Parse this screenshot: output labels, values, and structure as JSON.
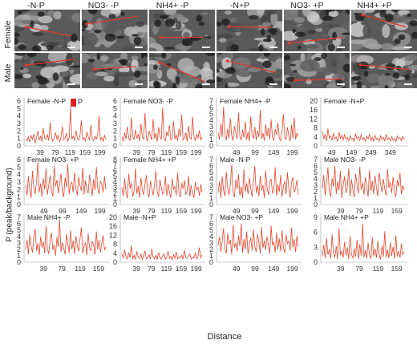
{
  "column_headers": [
    "-N-P",
    "NO3- -P",
    "NH4+ -P",
    "-N+P",
    "NO3- +P",
    "NH4+ +P"
  ],
  "row_labels": [
    "Female",
    "Male"
  ],
  "y_axis_label": "P (peak/background)",
  "x_axis_label": "Distance",
  "legend_label": "P",
  "colors": {
    "line": "#e8452c",
    "legend": "#e02020",
    "sem_dark": "#2a2a2a",
    "sem_light": "#b8b8b8",
    "trace": "#e23a2a"
  },
  "chart_data": [
    {
      "type": "line",
      "title": "Female -N-P",
      "ylim": [
        0,
        6
      ],
      "yticks": [
        0,
        1,
        2,
        3,
        4,
        5,
        6
      ],
      "xticks": [
        39,
        79,
        119,
        159,
        199
      ],
      "xlim": [
        0,
        215
      ],
      "series": [
        {
          "values": [
            1.0,
            0.7,
            1.2,
            0.5,
            1.4,
            0.9,
            1.6,
            0.4,
            1.1,
            2.0,
            0.8,
            1.3,
            0.6,
            2.4,
            1.0,
            0.9,
            1.5,
            0.7,
            3.1,
            1.2,
            0.6,
            1.0,
            1.8,
            0.9,
            1.4,
            0.5,
            1.2,
            2.6,
            0.8,
            1.0,
            1.7,
            0.6,
            1.1,
            5.2,
            0.9,
            1.3,
            0.7,
            2.1,
            1.0,
            0.8,
            1.4,
            3.4,
            0.9,
            1.1,
            0.6,
            1.9,
            1.2,
            0.8,
            2.8,
            1.0,
            0.7,
            1.3,
            0.9,
            1.5,
            4.0,
            0.8,
            1.1,
            0.6,
            1.4,
            0.9
          ]
        }
      ]
    },
    {
      "type": "line",
      "title": "Female NO3- -P",
      "ylim": [
        0,
        6
      ],
      "yticks": [
        0,
        1,
        2,
        3,
        4,
        5,
        6
      ],
      "xticks": [
        39,
        79,
        119,
        159,
        199
      ],
      "xlim": [
        0,
        215
      ],
      "series": [
        {
          "values": [
            1.2,
            0.6,
            1.8,
            0.9,
            2.6,
            1.1,
            0.7,
            3.8,
            1.3,
            0.8,
            2.2,
            1.0,
            1.6,
            0.6,
            3.0,
            1.2,
            0.9,
            4.4,
            1.1,
            0.7,
            2.0,
            1.4,
            0.8,
            3.6,
            1.0,
            1.7,
            0.6,
            2.5,
            1.2,
            0.9,
            5.1,
            1.0,
            0.7,
            1.9,
            1.3,
            2.8,
            0.8,
            1.1,
            3.3,
            0.9,
            1.5,
            0.7,
            2.3,
            1.2,
            4.2,
            0.8,
            1.0,
            1.8,
            0.6,
            2.7,
            1.1,
            0.9,
            3.9,
            1.3,
            0.7,
            1.6,
            1.0,
            2.1,
            0.8,
            1.2
          ]
        }
      ]
    },
    {
      "type": "line",
      "title": "Female NH4+ -P",
      "ylim": [
        0,
        7
      ],
      "yticks": [
        0,
        1,
        2,
        3,
        4,
        5,
        6,
        7
      ],
      "xticks": [
        49,
        99,
        149,
        199
      ],
      "xlim": [
        0,
        215
      ],
      "series": [
        {
          "values": [
            2.1,
            1.0,
            3.5,
            1.4,
            6.1,
            1.8,
            0.9,
            2.7,
            1.2,
            4.3,
            1.6,
            0.8,
            3.1,
            2.0,
            1.1,
            5.2,
            1.5,
            0.9,
            2.5,
            1.3,
            3.8,
            1.0,
            2.2,
            0.7,
            4.6,
            1.6,
            1.2,
            3.0,
            0.9,
            2.4,
            1.4,
            5.6,
            1.1,
            2.0,
            0.8,
            3.4,
            1.5,
            2.8,
            1.0,
            4.1,
            1.3,
            0.9,
            2.6,
            1.8,
            3.6,
            1.2,
            0.8,
            2.3,
            5.0,
            1.4,
            1.0,
            2.9,
            1.6,
            0.7,
            3.3,
            1.2,
            4.4,
            1.0,
            2.0,
            1.5
          ]
        }
      ]
    },
    {
      "type": "line",
      "title": "Female -N+P",
      "ylim": [
        0,
        20
      ],
      "yticks": [
        0,
        4,
        8,
        12,
        16,
        20
      ],
      "xticks": [
        49,
        149,
        249,
        349
      ],
      "xlim": [
        0,
        420
      ],
      "series": [
        {
          "values": [
            6.5,
            3.0,
            5.2,
            2.2,
            7.8,
            3.6,
            4.4,
            2.5,
            5.8,
            3.1,
            4.0,
            2.0,
            6.2,
            3.4,
            4.8,
            2.6,
            5.0,
            3.0,
            3.8,
            2.3,
            4.6,
            2.9,
            3.5,
            2.1,
            5.4,
            3.2,
            4.1,
            2.4,
            4.9,
            2.8,
            3.6,
            2.0,
            4.3,
            3.1,
            5.1,
            2.5,
            3.9,
            2.2,
            4.7,
            3.0,
            3.4,
            2.1,
            4.5,
            2.7,
            3.8,
            2.3,
            5.0,
            2.9,
            3.6,
            2.2,
            4.2,
            2.6,
            3.3,
            2.0,
            4.4,
            3.2,
            3.7,
            2.4,
            4.1,
            2.8
          ]
        }
      ]
    },
    {
      "type": "line",
      "title": "Female NO3- +P",
      "ylim": [
        0,
        6
      ],
      "yticks": [
        0,
        1,
        2,
        3,
        4,
        5,
        6
      ],
      "xticks": [
        49,
        99,
        149,
        199
      ],
      "xlim": [
        0,
        215
      ],
      "series": [
        {
          "values": [
            2.5,
            1.2,
            3.8,
            1.9,
            0.9,
            4.5,
            2.2,
            1.4,
            3.1,
            5.6,
            1.6,
            2.8,
            1.0,
            3.5,
            2.0,
            4.8,
            1.3,
            2.6,
            3.9,
            1.8,
            1.1,
            5.2,
            2.4,
            3.3,
            1.5,
            2.9,
            4.1,
            1.7,
            1.0,
            3.6,
            2.3,
            5.4,
            1.4,
            2.7,
            3.0,
            1.6,
            4.3,
            2.1,
            1.2,
            3.7,
            2.5,
            1.8,
            4.9,
            1.3,
            3.2,
            2.0,
            1.5,
            4.0,
            2.6,
            1.1,
            3.4,
            1.9,
            5.0,
            2.2,
            1.4,
            3.1,
            2.7,
            1.6,
            3.8,
            2.0
          ]
        }
      ]
    },
    {
      "type": "line",
      "title": "Female NH4+ +P",
      "ylim": [
        0,
        8
      ],
      "yticks": [
        0,
        1,
        2,
        3,
        4,
        5,
        6,
        7,
        8
      ],
      "xticks": [
        39,
        79,
        119,
        159,
        199
      ],
      "xlim": [
        0,
        215
      ],
      "series": [
        {
          "values": [
            3.0,
            1.5,
            4.6,
            2.2,
            1.1,
            5.5,
            2.8,
            3.9,
            1.4,
            2.4,
            6.4,
            1.9,
            3.3,
            1.2,
            4.8,
            2.6,
            1.7,
            3.6,
            5.2,
            2.0,
            1.3,
            4.2,
            2.9,
            1.6,
            3.5,
            6.0,
            2.3,
            1.4,
            4.4,
            3.0,
            1.8,
            2.5,
            5.0,
            1.5,
            3.7,
            2.2,
            1.2,
            4.6,
            2.7,
            3.2,
            1.6,
            5.6,
            2.1,
            1.3,
            3.8,
            2.8,
            4.3,
            1.7,
            2.4,
            5.1,
            1.4,
            3.4,
            2.0,
            1.2,
            4.0,
            2.6,
            3.1,
            1.5,
            3.6,
            2.2
          ]
        }
      ]
    },
    {
      "type": "line",
      "title": "Male -N-P",
      "ylim": [
        0,
        7
      ],
      "yticks": [
        0,
        1,
        2,
        3,
        4,
        5,
        6,
        7
      ],
      "xticks": [
        49,
        99,
        149,
        199
      ],
      "xlim": [
        0,
        215
      ],
      "series": [
        {
          "values": [
            1.8,
            3.6,
            1.0,
            4.4,
            2.2,
            1.3,
            5.1,
            2.6,
            1.5,
            3.2,
            6.2,
            1.9,
            1.1,
            3.9,
            2.4,
            4.7,
            1.4,
            2.8,
            1.0,
            5.5,
            2.0,
            3.3,
            1.6,
            4.2,
            2.5,
            1.2,
            3.7,
            6.0,
            1.8,
            2.9,
            1.3,
            4.5,
            2.2,
            3.0,
            1.0,
            5.3,
            2.7,
            1.5,
            3.5,
            4.0,
            1.7,
            2.3,
            5.8,
            1.4,
            3.1,
            2.0,
            4.6,
            1.2,
            2.8,
            3.6,
            1.6,
            5.0,
            2.4,
            1.1,
            3.4,
            4.3,
            1.9,
            2.6,
            3.8,
            1.5
          ]
        }
      ]
    },
    {
      "type": "line",
      "title": "Male NO3- -P",
      "ylim": [
        0,
        7
      ],
      "yticks": [
        0,
        1,
        2,
        3,
        4,
        5,
        6,
        7
      ],
      "xticks": [
        39,
        79,
        119,
        159
      ],
      "xlim": [
        0,
        175
      ],
      "series": [
        {
          "values": [
            2.5,
            4.6,
            1.4,
            3.3,
            5.8,
            2.0,
            1.2,
            4.1,
            2.8,
            6.0,
            1.6,
            3.6,
            2.2,
            5.2,
            1.0,
            3.0,
            4.4,
            1.8,
            2.6,
            5.6,
            1.3,
            3.9,
            2.4,
            1.1,
            4.8,
            3.1,
            1.7,
            5.9,
            2.3,
            3.4,
            1.5,
            4.2,
            2.9,
            1.2,
            5.4,
            2.1,
            3.7,
            1.6,
            4.5,
            2.7,
            1.3,
            5.0,
            3.2,
            1.9,
            4.0,
            2.4,
            1.4,
            5.5,
            2.6,
            3.5,
            1.8,
            4.3,
            2.1,
            1.2,
            3.8,
            2.8,
            4.9,
            1.6,
            3.0,
            2.2
          ]
        }
      ]
    },
    {
      "type": "line",
      "title": "Male NH4+ -P",
      "ylim": [
        0,
        7
      ],
      "yticks": [
        0,
        1,
        2,
        3,
        4,
        5,
        6,
        7
      ],
      "xticks": [
        39,
        79,
        119,
        159
      ],
      "xlim": [
        0,
        175
      ],
      "series": [
        {
          "values": [
            2.0,
            3.5,
            1.2,
            4.3,
            2.6,
            1.5,
            3.8,
            5.2,
            1.8,
            2.9,
            1.1,
            4.0,
            2.3,
            3.2,
            1.4,
            5.6,
            2.1,
            1.3,
            3.6,
            4.6,
            1.9,
            2.7,
            1.0,
            3.9,
            2.4,
            6.6,
            1.6,
            3.1,
            2.2,
            1.2,
            4.4,
            2.8,
            1.5,
            5.0,
            2.0,
            3.4,
            1.3,
            4.1,
            2.5,
            1.7,
            3.7,
            5.4,
            1.4,
            2.6,
            3.0,
            1.1,
            4.5,
            2.2,
            1.8,
            3.3,
            2.7,
            1.2,
            4.8,
            2.0,
            3.5,
            1.5,
            2.9,
            4.2,
            1.9,
            2.4
          ]
        }
      ]
    },
    {
      "type": "line",
      "title": "Male -N+P",
      "ylim": [
        0,
        20
      ],
      "yticks": [
        0,
        4,
        8,
        12,
        16,
        20
      ],
      "xticks": [
        39,
        79,
        119,
        159,
        199
      ],
      "xlim": [
        0,
        215
      ],
      "series": [
        {
          "values": [
            3.5,
            1.8,
            5.6,
            2.4,
            1.4,
            4.2,
            2.0,
            7.4,
            1.6,
            3.0,
            1.3,
            4.8,
            2.2,
            1.7,
            3.6,
            1.2,
            2.8,
            5.2,
            1.5,
            2.1,
            3.4,
            1.4,
            6.0,
            2.3,
            1.6,
            3.1,
            1.2,
            4.4,
            2.0,
            1.5,
            2.7,
            3.8,
            1.3,
            2.2,
            5.0,
            1.7,
            2.6,
            1.2,
            3.3,
            1.8,
            4.6,
            1.4,
            2.4,
            1.9,
            3.0,
            1.3,
            5.4,
            2.1,
            1.6,
            2.9,
            3.6,
            1.4,
            2.2,
            1.8,
            4.2,
            1.5,
            2.6,
            6.5,
            2.0,
            3.2
          ]
        }
      ]
    },
    {
      "type": "line",
      "title": "Male NO3- +P",
      "ylim": [
        0,
        7
      ],
      "yticks": [
        0,
        1,
        2,
        3,
        4,
        5,
        6,
        7
      ],
      "xticks": [
        49,
        99,
        149,
        199
      ],
      "xlim": [
        0,
        215
      ],
      "series": [
        {
          "values": [
            2.6,
            4.0,
            1.6,
            3.3,
            5.3,
            2.1,
            1.4,
            4.5,
            2.8,
            3.5,
            1.2,
            5.8,
            2.3,
            3.0,
            1.7,
            4.2,
            2.5,
            6.0,
            1.5,
            3.6,
            2.0,
            4.8,
            1.3,
            2.9,
            3.8,
            1.8,
            5.1,
            2.4,
            1.6,
            4.4,
            3.1,
            1.4,
            5.5,
            2.2,
            3.4,
            1.9,
            4.0,
            2.7,
            1.3,
            5.7,
            2.6,
            3.2,
            1.5,
            4.6,
            2.0,
            3.7,
            1.7,
            5.0,
            2.4,
            1.4,
            4.3,
            2.9,
            3.3,
            1.8,
            5.4,
            2.3,
            3.6,
            1.6,
            4.1,
            2.5
          ]
        }
      ]
    },
    {
      "type": "line",
      "title": "Male NH4+ +P",
      "ylim": [
        0,
        9
      ],
      "yticks": [
        0,
        3,
        6,
        9
      ],
      "xticks": [
        39,
        79,
        119,
        159
      ],
      "xlim": [
        0,
        175
      ],
      "series": [
        {
          "values": [
            1.2,
            3.5,
            0.8,
            4.8,
            1.5,
            2.6,
            0.7,
            5.6,
            1.9,
            1.0,
            3.2,
            0.6,
            6.8,
            1.4,
            2.2,
            0.9,
            4.1,
            1.3,
            3.0,
            0.7,
            5.2,
            1.6,
            0.8,
            2.8,
            1.1,
            4.5,
            0.6,
            3.6,
            1.3,
            7.8,
            1.0,
            2.4,
            0.8,
            3.9,
            1.5,
            0.7,
            5.0,
            1.2,
            2.7,
            0.9,
            4.3,
            1.4,
            0.6,
            3.3,
            1.1,
            6.2,
            1.0,
            2.5,
            0.8,
            4.0,
            1.3,
            3.1,
            0.7,
            5.4,
            1.2,
            2.2,
            0.9,
            3.7,
            1.5,
            2.0
          ]
        }
      ]
    }
  ]
}
